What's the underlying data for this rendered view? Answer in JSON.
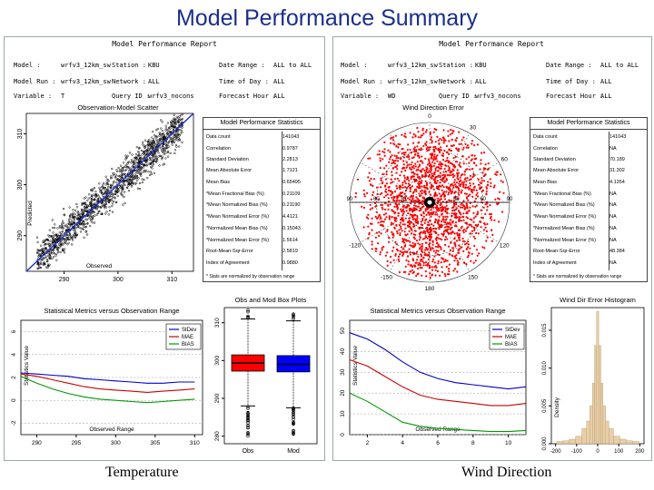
{
  "title": "Model Performance Summary",
  "left_report": {
    "title": "Model Performance Report",
    "model_label": "Model :",
    "model_value": "wrfv3_12km_sw",
    "model_run_label": "Model Run :",
    "model_run_value": "wrfv3_12km_sw",
    "variable_label": "Variable :",
    "variable_value": "T",
    "station_label": "Station :",
    "station_value": "KBU",
    "network_label": "Network :",
    "network_value": "ALL",
    "query_label": "Query ID :",
    "query_value": "wrfv3_nocons",
    "date_label": "Date Range :",
    "date_value": "ALL to ALL",
    "tod_label": "Time of Day :",
    "tod_value": "ALL",
    "fhour_label": "Forecast Hour :",
    "fhour_value": "ALL"
  },
  "right_report": {
    "title": "Model Performance Report",
    "model_label": "Model :",
    "model_value": "wrfv3_12km_sw",
    "model_run_label": "Model Run :",
    "model_run_value": "wrfv3_12km_sw",
    "variable_label": "Variable :",
    "variable_value": "WD",
    "station_label": "Station :",
    "station_value": "KBU",
    "network_label": "Network :",
    "network_value": "ALL",
    "query_label": "Query ID :",
    "query_value": "wrfv3_nocons",
    "date_label": "Date Range :",
    "date_value": "ALL to ALL",
    "tod_label": "Time of Day :",
    "tod_value": "ALL",
    "fhour_label": "Forecast Hour :",
    "fhour_value": "ALL"
  },
  "temp_stats": {
    "title": "Model Performance Statistics",
    "footnote": "* Stats are normalized by observation range",
    "rows": [
      {
        "k": "Data count",
        "v": "141043"
      },
      {
        "k": "Correlation",
        "v": "0.9787"
      },
      {
        "k": "Standard Deviation",
        "v": "2.2813"
      },
      {
        "k": "Mean Absolute Error",
        "v": "1.7121"
      },
      {
        "k": "Mean Bias",
        "v": "0.65495"
      },
      {
        "k": "*Mean Fractional Bias (%)",
        "v": "0.21109"
      },
      {
        "k": "*Mean Normalized Bias (%)",
        "v": "0.21190"
      },
      {
        "k": "*Mean Normalized Error (%)",
        "v": "4.4121"
      },
      {
        "k": "*Normalized Mean Bias (%)",
        "v": "0.15043"
      },
      {
        "k": "*Normalized Mean Error (%)",
        "v": "1.5614"
      },
      {
        "k": "Root-Mean-Sqr-Error",
        "v": "2.5819"
      },
      {
        "k": "Index of Agreement",
        "v": "0.9880"
      }
    ]
  },
  "wind_stats": {
    "title": "Model Performance Statistics",
    "footnote": "* Stats are normalized by observation range",
    "rows": [
      {
        "k": "Data count",
        "v": "141043"
      },
      {
        "k": "Correlation",
        "v": "NA"
      },
      {
        "k": "Standard Deviation",
        "v": "70.189"
      },
      {
        "k": "Mean Absolute Error",
        "v": "31.302"
      },
      {
        "k": "Mean Bias",
        "v": "4.1354"
      },
      {
        "k": "*Mean Fractional Bias (%)",
        "v": "NA"
      },
      {
        "k": "*Mean Normalized Bias (%)",
        "v": "NA"
      },
      {
        "k": "*Mean Normalized Error (%)",
        "v": "NA"
      },
      {
        "k": "*Normalized Mean Bias (%)",
        "v": "NA"
      },
      {
        "k": "*Normalized Mean Error (%)",
        "v": "NA"
      },
      {
        "k": "Root-Mean-Sqr-Error",
        "v": "48.384"
      },
      {
        "k": "Index of Agreement",
        "v": "NA"
      }
    ]
  },
  "scatter": {
    "title": "Observation-Model Scatter",
    "xlabel": "Observed",
    "ylabel": "Predicted",
    "xticks": [
      "290",
      "300",
      "310"
    ],
    "yticks": [
      "290",
      "300",
      "310"
    ],
    "point_color": "#000000",
    "fit_color": "#1a2fd0"
  },
  "wind_dir": {
    "title": "Wind Direction Error",
    "point_color": "#ff0000",
    "radial_labels": [
      "90",
      "60",
      "30",
      "0",
      "30",
      "60",
      "90"
    ],
    "angle_labels": [
      "0",
      "30",
      "60",
      "120",
      "-120",
      "-150",
      "150",
      "180"
    ]
  },
  "metrics_temp": {
    "title": "Statistical Metrics versus Observation Range",
    "xlabel": "Observed Range",
    "ylabel": "Statistics Value",
    "xticks": [
      "290",
      "295",
      "300",
      "305",
      "310"
    ],
    "yticks": [
      "-2",
      "0",
      "2",
      "4",
      "6"
    ]
  },
  "metrics_wind": {
    "title": "Statistical Metrics versus Observation Range",
    "xlabel": "Observed Range",
    "ylabel": "Statistics Value",
    "xticks": [
      "2",
      "4",
      "6",
      "8",
      "10"
    ],
    "yticks": [
      "0",
      "10",
      "20",
      "30",
      "40",
      "50"
    ]
  },
  "boxplot": {
    "title": "Obs and Mod Box Plots",
    "yticks": [
      "280",
      "290",
      "300",
      "310"
    ],
    "obs_label": "Obs",
    "mod_label": "Mod",
    "obs_color": "#ff0000",
    "mod_color": "#0000ff"
  },
  "histogram": {
    "title": "Wind Dir Error Histogram",
    "ylabel": "Density",
    "xticks": [
      "-200",
      "-100",
      "0",
      "100",
      "200"
    ],
    "yticks": [
      "0.000",
      "0.005",
      "0.010",
      "0.015"
    ],
    "bar_color": "#e8cfa8"
  },
  "captions": {
    "left": "Temperature",
    "right": "Wind Direction"
  },
  "chart_data": [
    {
      "type": "scatter",
      "title": "Observation-Model Scatter",
      "xlabel": "Observed",
      "ylabel": "Predicted",
      "xlim": [
        283,
        314
      ],
      "ylim": [
        283,
        314
      ],
      "x": [
        285,
        290,
        295,
        300,
        305,
        310
      ],
      "series": [
        {
          "values": [
            285.5,
            290.4,
            295.6,
            300.7,
            305.5,
            310.3
          ]
        }
      ]
    },
    {
      "type": "line",
      "title": "Statistical Metrics versus Observation Range",
      "xlabel": "Observed Range",
      "ylabel": "Statistics Value",
      "xlim": [
        288,
        311
      ],
      "ylim": [
        -3,
        7
      ],
      "x": [
        288,
        290,
        292,
        294,
        296,
        298,
        300,
        302,
        304,
        306,
        308,
        310
      ],
      "series": [
        {
          "name": "StDev",
          "color": "#0000cc",
          "values": [
            2.4,
            2.3,
            2.2,
            2.1,
            1.9,
            1.8,
            1.7,
            1.6,
            1.5,
            1.5,
            1.6,
            1.6
          ]
        },
        {
          "name": "MAE",
          "color": "#cc0000",
          "values": [
            2.3,
            2.1,
            1.8,
            1.5,
            1.2,
            1.0,
            0.9,
            0.8,
            0.7,
            0.8,
            0.9,
            1.0
          ]
        },
        {
          "name": "BIAS",
          "color": "#009900",
          "values": [
            2.1,
            1.5,
            1.0,
            0.6,
            0.3,
            0.1,
            0.0,
            -0.1,
            -0.2,
            -0.1,
            0.0,
            0.1
          ]
        }
      ]
    },
    {
      "type": "line",
      "title": "Statistical Metrics versus Observation Range",
      "xlabel": "Observed Range",
      "ylabel": "Statistics Value",
      "xlim": [
        1,
        11
      ],
      "ylim": [
        0,
        55
      ],
      "x": [
        1,
        2,
        3,
        4,
        5,
        6,
        7,
        8,
        9,
        10,
        11
      ],
      "series": [
        {
          "name": "StDev",
          "color": "#0000cc",
          "values": [
            49,
            46,
            41,
            35,
            30,
            27,
            25,
            24,
            23,
            22,
            23
          ]
        },
        {
          "name": "MAE",
          "color": "#cc0000",
          "values": [
            36,
            33,
            28,
            23,
            19,
            17,
            16,
            15,
            14,
            14,
            15
          ]
        },
        {
          "name": "BIAS",
          "color": "#009900",
          "values": [
            20,
            16,
            11,
            6,
            4,
            3,
            2.5,
            2,
            1.5,
            1.5,
            2
          ]
        }
      ]
    },
    {
      "type": "bar",
      "title": "Obs and Mod Box Plots",
      "categories": [
        "Obs",
        "Mod"
      ],
      "series": [
        {
          "name": "q1",
          "values": [
            297.2,
            297.0
          ]
        },
        {
          "name": "median",
          "values": [
            299.3,
            299.0
          ]
        },
        {
          "name": "q3",
          "values": [
            301.5,
            301.3
          ]
        },
        {
          "name": "whisker_low",
          "values": [
            288.0,
            287.5
          ]
        },
        {
          "name": "whisker_high",
          "values": [
            311.0,
            310.5
          ]
        }
      ],
      "ylim": [
        278,
        314
      ]
    },
    {
      "type": "bar",
      "title": "Wind Dir Error Histogram",
      "ylabel": "Density",
      "categories": [
        "-180",
        "-150",
        "-120",
        "-90",
        "-60",
        "-45",
        "-30",
        "-20",
        "-10",
        "0",
        "10",
        "20",
        "30",
        "45",
        "60",
        "90",
        "120",
        "150",
        "180"
      ],
      "values": [
        0.0003,
        0.0004,
        0.0006,
        0.001,
        0.002,
        0.003,
        0.005,
        0.008,
        0.013,
        0.0175,
        0.013,
        0.008,
        0.005,
        0.003,
        0.002,
        0.001,
        0.0006,
        0.0004,
        0.0003
      ],
      "ylim": [
        0,
        0.018
      ]
    }
  ]
}
